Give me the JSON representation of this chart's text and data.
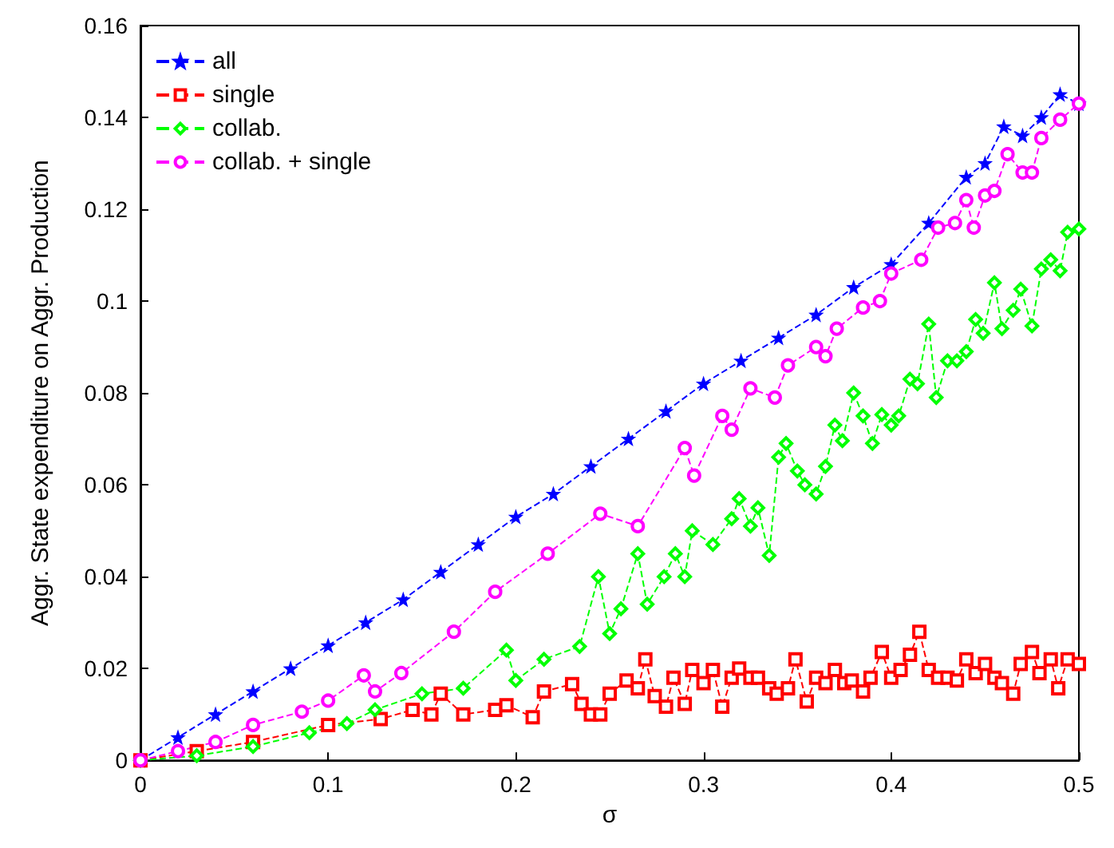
{
  "chart_data": {
    "type": "line",
    "xlabel": "σ",
    "ylabel": "Aggr. State expenditure on Aggr. Production",
    "xlim": [
      0,
      0.5
    ],
    "xticks": [
      0,
      0.1,
      0.2,
      0.3,
      0.4,
      0.5
    ],
    "ylim": [
      0,
      0.16
    ],
    "yticks": [
      0,
      0.02,
      0.04,
      0.06,
      0.08,
      0.1,
      0.12,
      0.14,
      0.16
    ],
    "grid": false,
    "legend": "top left",
    "line_style": "dashed",
    "series": [
      {
        "name": "all",
        "color": "#0000ff",
        "marker": "star",
        "x": [
          0,
          0.02,
          0.04,
          0.06,
          0.08,
          0.1,
          0.12,
          0.14,
          0.16,
          0.18,
          0.2,
          0.22,
          0.24,
          0.26,
          0.28,
          0.3,
          0.32,
          0.34,
          0.36,
          0.38,
          0.4,
          0.42,
          0.44,
          0.45,
          0.46,
          0.47,
          0.48,
          0.49,
          0.5
        ],
        "values": [
          0,
          0.005,
          0.01,
          0.015,
          0.02,
          0.025,
          0.03,
          0.035,
          0.041,
          0.047,
          0.053,
          0.058,
          0.064,
          0.07,
          0.076,
          0.082,
          0.087,
          0.092,
          0.097,
          0.103,
          0.108,
          0.117,
          0.127,
          0.13,
          0.138,
          0.136,
          0.14,
          0.145,
          0.143
        ]
      },
      {
        "name": "single",
        "color": "#ff0000",
        "marker": "square",
        "x": [
          0,
          0.03,
          0.06,
          0.1,
          0.128,
          0.145,
          0.155,
          0.16,
          0.172,
          0.189,
          0.195,
          0.209,
          0.215,
          0.23,
          0.235,
          0.24,
          0.245,
          0.25,
          0.259,
          0.265,
          0.269,
          0.274,
          0.28,
          0.284,
          0.29,
          0.294,
          0.3,
          0.305,
          0.31,
          0.315,
          0.319,
          0.325,
          0.329,
          0.335,
          0.339,
          0.345,
          0.349,
          0.355,
          0.36,
          0.365,
          0.37,
          0.375,
          0.379,
          0.385,
          0.389,
          0.395,
          0.4,
          0.405,
          0.41,
          0.415,
          0.42,
          0.425,
          0.43,
          0.435,
          0.44,
          0.445,
          0.45,
          0.455,
          0.459,
          0.465,
          0.469,
          0.475,
          0.479,
          0.485,
          0.489,
          0.494,
          0.5
        ],
        "values": [
          0,
          0.002,
          0.004,
          0.0077,
          0.009,
          0.011,
          0.01,
          0.0145,
          0.01,
          0.011,
          0.012,
          0.0094,
          0.015,
          0.0166,
          0.0123,
          0.01,
          0.01,
          0.0145,
          0.0174,
          0.0157,
          0.022,
          0.014,
          0.0117,
          0.018,
          0.0123,
          0.0197,
          0.0168,
          0.0197,
          0.0117,
          0.018,
          0.02,
          0.018,
          0.018,
          0.0157,
          0.0145,
          0.0157,
          0.022,
          0.0128,
          0.018,
          0.0168,
          0.0197,
          0.0168,
          0.0174,
          0.015,
          0.018,
          0.0236,
          0.018,
          0.0197,
          0.023,
          0.028,
          0.0197,
          0.018,
          0.018,
          0.0174,
          0.022,
          0.019,
          0.021,
          0.018,
          0.0168,
          0.0145,
          0.021,
          0.0236,
          0.019,
          0.022,
          0.0157,
          0.022,
          0.021
        ]
      },
      {
        "name": "collab.",
        "color": "#00ff00",
        "marker": "diamond",
        "x": [
          0,
          0.03,
          0.06,
          0.09,
          0.11,
          0.125,
          0.15,
          0.172,
          0.195,
          0.2,
          0.215,
          0.234,
          0.244,
          0.25,
          0.256,
          0.265,
          0.27,
          0.279,
          0.285,
          0.29,
          0.294,
          0.305,
          0.315,
          0.319,
          0.325,
          0.329,
          0.335,
          0.34,
          0.344,
          0.35,
          0.354,
          0.36,
          0.365,
          0.37,
          0.374,
          0.38,
          0.385,
          0.39,
          0.395,
          0.4,
          0.404,
          0.41,
          0.414,
          0.42,
          0.424,
          0.43,
          0.435,
          0.44,
          0.445,
          0.449,
          0.455,
          0.459,
          0.465,
          0.469,
          0.475,
          0.48,
          0.485,
          0.49,
          0.494,
          0.5
        ],
        "values": [
          0,
          0.001,
          0.003,
          0.006,
          0.008,
          0.011,
          0.0145,
          0.0157,
          0.024,
          0.0174,
          0.022,
          0.0248,
          0.04,
          0.0276,
          0.033,
          0.045,
          0.034,
          0.04,
          0.045,
          0.04,
          0.05,
          0.047,
          0.0526,
          0.057,
          0.051,
          0.055,
          0.0446,
          0.066,
          0.069,
          0.063,
          0.06,
          0.058,
          0.064,
          0.073,
          0.0696,
          0.08,
          0.075,
          0.069,
          0.0753,
          0.073,
          0.075,
          0.083,
          0.082,
          0.095,
          0.079,
          0.087,
          0.087,
          0.089,
          0.096,
          0.093,
          0.104,
          0.094,
          0.098,
          0.1026,
          0.0946,
          0.107,
          0.109,
          0.1066,
          0.115,
          0.1157
        ]
      },
      {
        "name": "collab. + single",
        "color": "#ff00ff",
        "marker": "circle",
        "x": [
          0,
          0.02,
          0.04,
          0.06,
          0.086,
          0.1,
          0.119,
          0.125,
          0.139,
          0.167,
          0.189,
          0.217,
          0.245,
          0.265,
          0.29,
          0.295,
          0.31,
          0.315,
          0.325,
          0.338,
          0.345,
          0.36,
          0.365,
          0.371,
          0.385,
          0.394,
          0.4,
          0.416,
          0.425,
          0.434,
          0.44,
          0.444,
          0.45,
          0.455,
          0.462,
          0.47,
          0.475,
          0.48,
          0.49,
          0.5
        ],
        "values": [
          0,
          0.002,
          0.004,
          0.0077,
          0.0106,
          0.013,
          0.0185,
          0.015,
          0.019,
          0.028,
          0.0367,
          0.045,
          0.0537,
          0.051,
          0.068,
          0.062,
          0.075,
          0.072,
          0.081,
          0.079,
          0.086,
          0.09,
          0.088,
          0.094,
          0.0986,
          0.1,
          0.106,
          0.109,
          0.116,
          0.117,
          0.122,
          0.116,
          0.123,
          0.124,
          0.132,
          0.128,
          0.128,
          0.1355,
          0.1395,
          0.143
        ]
      }
    ]
  }
}
